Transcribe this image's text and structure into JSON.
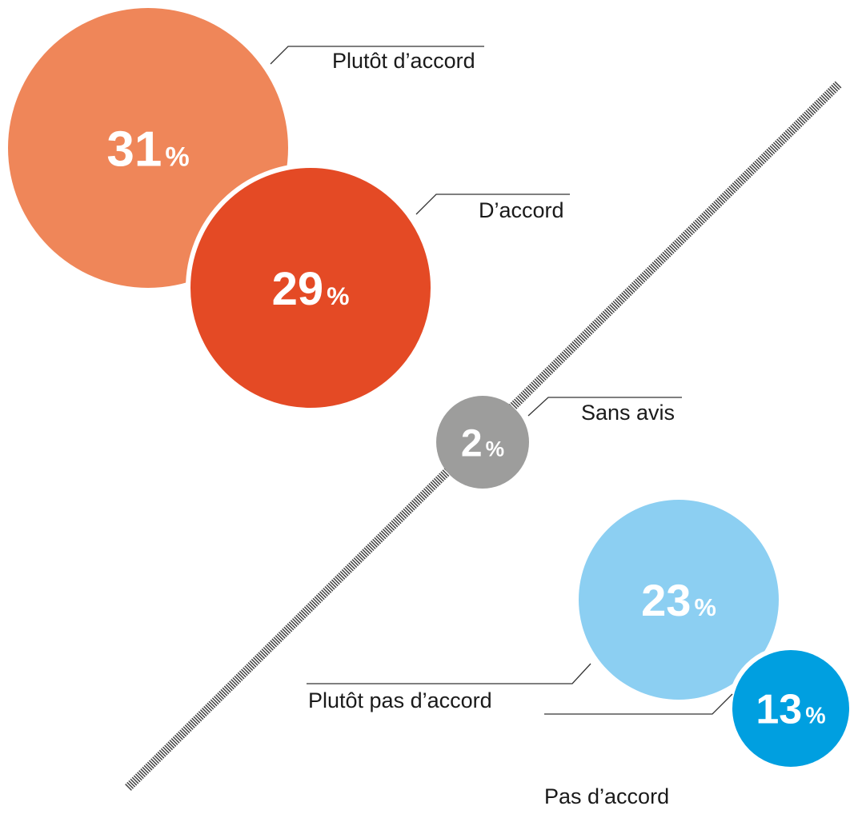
{
  "chart_data": {
    "type": "bubble",
    "categories": [
      "Plutôt d’accord",
      "D’accord",
      "Sans avis",
      "Plutôt pas d’accord",
      "Pas d’accord"
    ],
    "values": [
      31,
      29,
      2,
      23,
      13
    ],
    "value_labels": [
      "31%",
      "29%",
      "2%",
      "23%",
      "13%"
    ],
    "colors": [
      "#ef8659",
      "#e44a25",
      "#9d9d9c",
      "#8ccff2",
      "#009fe0"
    ]
  }
}
